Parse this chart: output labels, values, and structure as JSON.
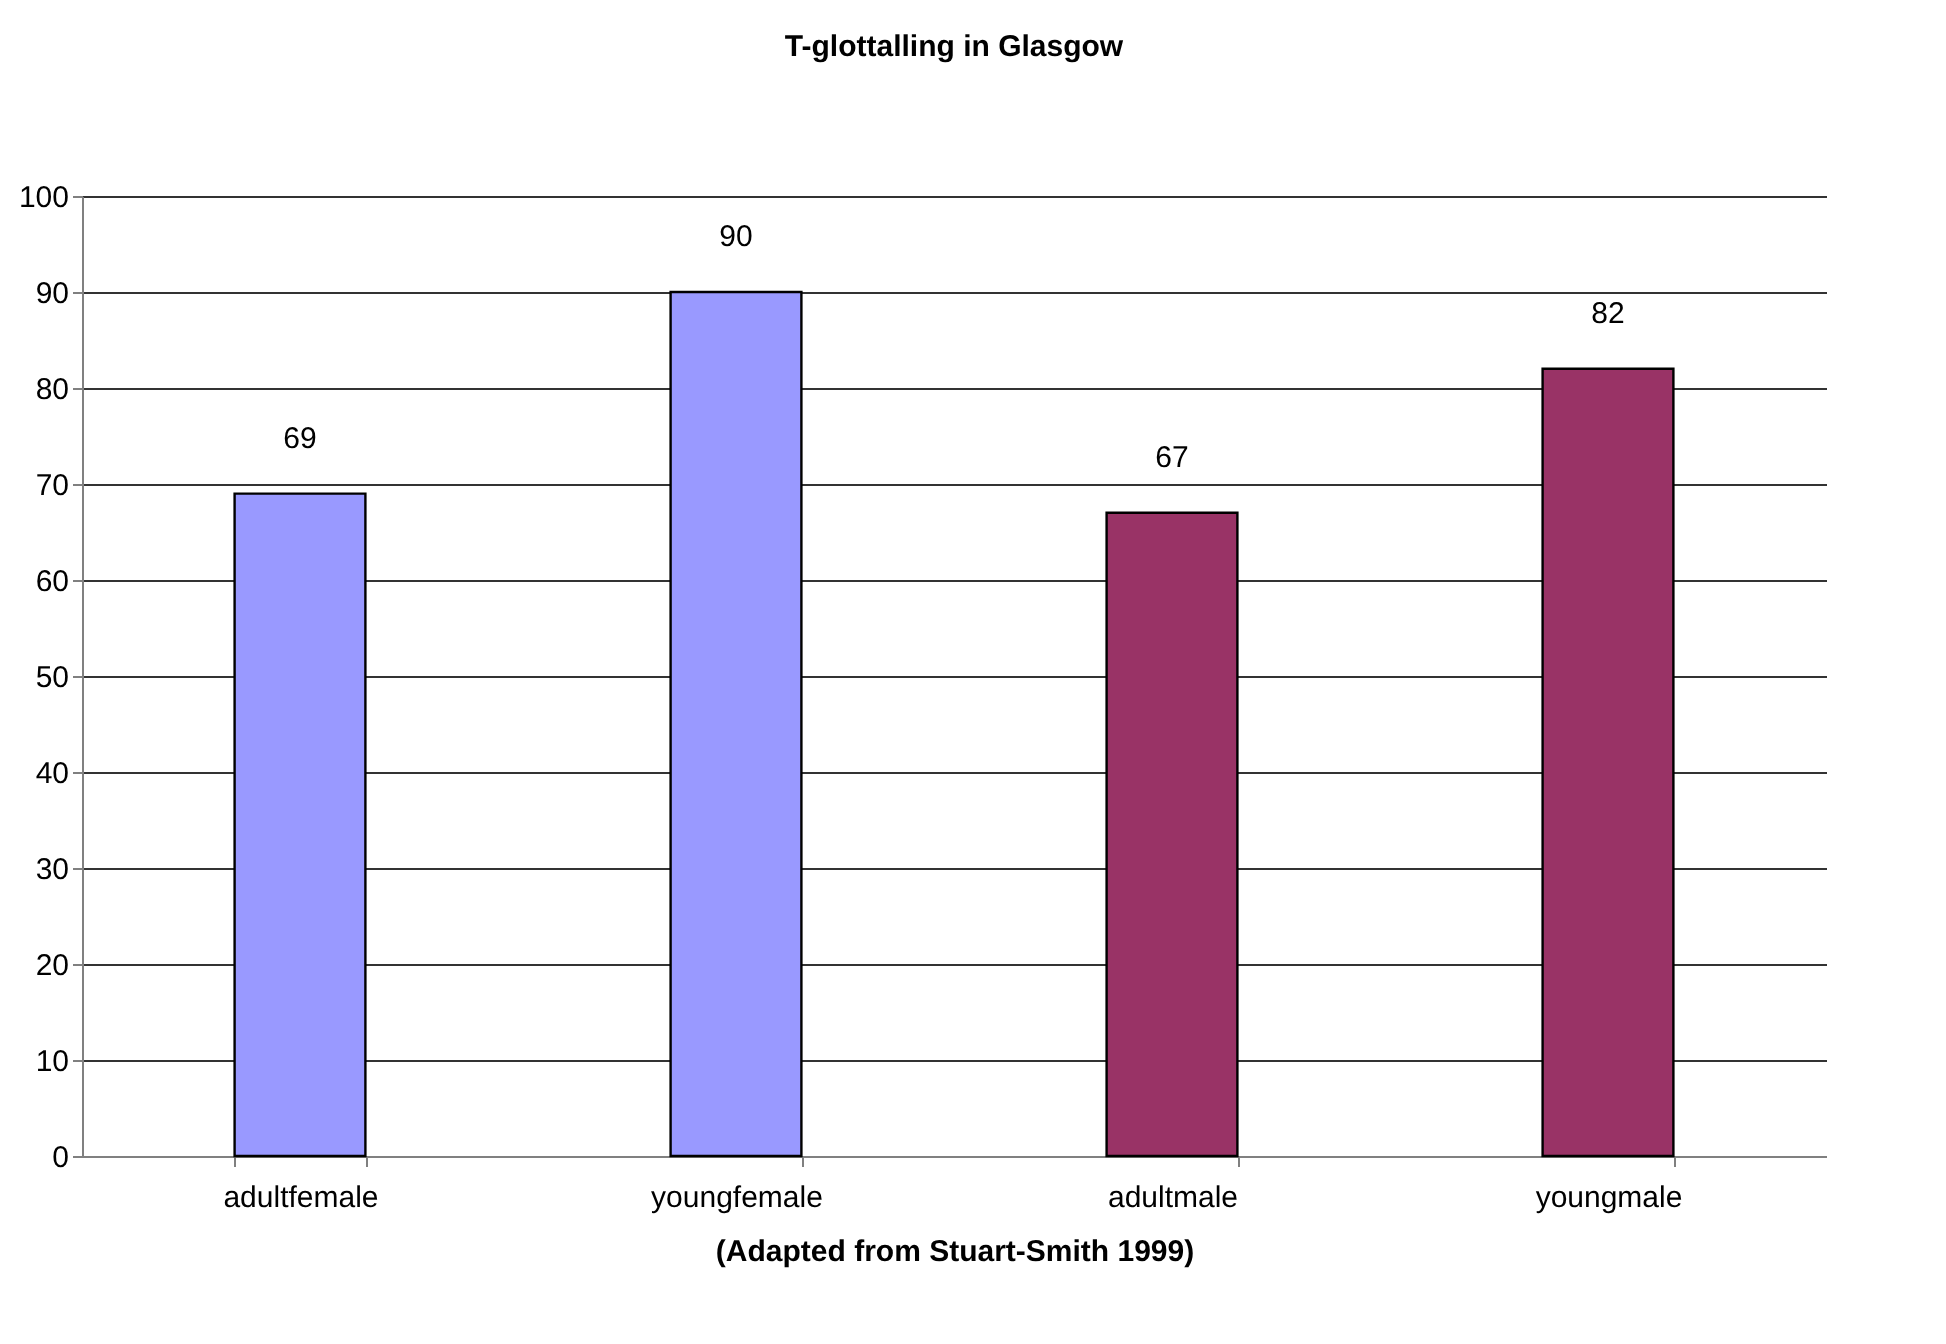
{
  "chart_data": {
    "type": "bar",
    "title": "T-glottalling in Glasgow",
    "xlabel": "(Adapted from Stuart-Smith 1999)",
    "categories": [
      "adultfemale",
      "youngfemale",
      "adultmale",
      "youngmale"
    ],
    "values": [
      69,
      90,
      67,
      82
    ],
    "colors": [
      "#9999ff",
      "#9999ff",
      "#993366",
      "#993366"
    ],
    "ylim": [
      0,
      100
    ],
    "yticks": [
      0,
      10,
      20,
      30,
      40,
      50,
      60,
      70,
      80,
      90,
      100
    ],
    "grid": "y",
    "data_labels": true
  }
}
